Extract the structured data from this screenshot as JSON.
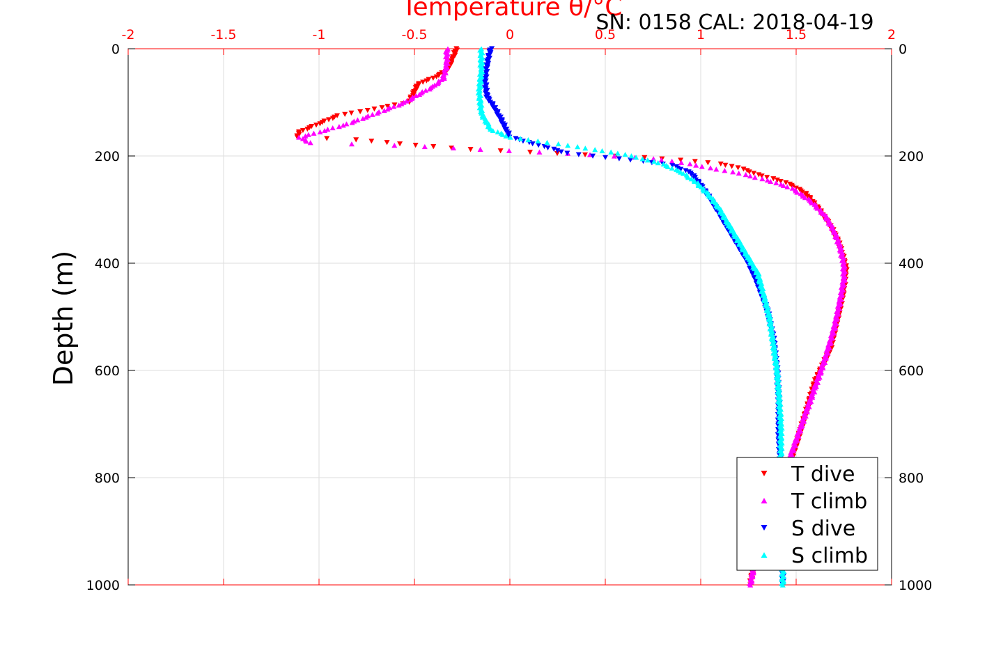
{
  "chart_data": {
    "type": "scatter",
    "title": "Temperature θ/°C",
    "subtitle": "SN: 0158  CAL: 2018-04-19",
    "xlabel": "Temperature θ/°C",
    "ylabel": "Depth (m)",
    "xlim": [
      -2,
      2
    ],
    "ylim": [
      0,
      1000
    ],
    "y_reversed": true,
    "x_ticks": [
      "-2",
      "-1.5",
      "-1",
      "-0.5",
      "0",
      "0.5",
      "1",
      "1.5",
      "2"
    ],
    "x_tick_values": [
      -2,
      -1.5,
      -1,
      -0.5,
      0,
      0.5,
      1,
      1.5,
      2
    ],
    "y_ticks": [
      "0",
      "200",
      "400",
      "600",
      "800",
      "1000"
    ],
    "y_tick_values": [
      0,
      200,
      400,
      600,
      800,
      1000
    ],
    "grid": true,
    "legend_position": "bottom-right",
    "series": [
      {
        "name": "T dive",
        "color": "#ff0000",
        "marker": "triangle-down",
        "points": [
          [
            -0.28,
            0
          ],
          [
            -0.3,
            20
          ],
          [
            -0.33,
            40
          ],
          [
            -0.4,
            55
          ],
          [
            -0.48,
            65
          ],
          [
            -0.5,
            80
          ],
          [
            -0.53,
            100
          ],
          [
            -0.6,
            105
          ],
          [
            -0.75,
            115
          ],
          [
            -0.9,
            125
          ],
          [
            -1.0,
            140
          ],
          [
            -1.1,
            155
          ],
          [
            -1.12,
            165
          ],
          [
            -0.8,
            170
          ],
          [
            -0.5,
            180
          ],
          [
            -0.2,
            188
          ],
          [
            0.1,
            193
          ],
          [
            0.4,
            198
          ],
          [
            0.7,
            203
          ],
          [
            0.9,
            208
          ],
          [
            1.1,
            215
          ],
          [
            1.2,
            222
          ],
          [
            1.3,
            235
          ],
          [
            1.45,
            250
          ],
          [
            1.55,
            270
          ],
          [
            1.62,
            300
          ],
          [
            1.68,
            330
          ],
          [
            1.72,
            360
          ],
          [
            1.74,
            380
          ],
          [
            1.76,
            410
          ],
          [
            1.75,
            450
          ],
          [
            1.72,
            500
          ],
          [
            1.68,
            560
          ],
          [
            1.6,
            620
          ],
          [
            1.55,
            680
          ],
          [
            1.5,
            740
          ],
          [
            1.45,
            790
          ],
          [
            1.38,
            850
          ],
          [
            1.32,
            910
          ],
          [
            1.28,
            960
          ],
          [
            1.26,
            1000
          ]
        ]
      },
      {
        "name": "T climb",
        "color": "#ff00ff",
        "marker": "triangle-up",
        "points": [
          [
            -0.33,
            0
          ],
          [
            -0.33,
            30
          ],
          [
            -0.35,
            55
          ],
          [
            -0.4,
            70
          ],
          [
            -0.48,
            85
          ],
          [
            -0.55,
            100
          ],
          [
            -0.7,
            120
          ],
          [
            -0.85,
            140
          ],
          [
            -1.0,
            155
          ],
          [
            -1.1,
            165
          ],
          [
            -1.05,
            175
          ],
          [
            -0.6,
            180
          ],
          [
            -0.3,
            185
          ],
          [
            0.0,
            190
          ],
          [
            0.3,
            195
          ],
          [
            0.55,
            200
          ],
          [
            0.75,
            205
          ],
          [
            0.9,
            212
          ],
          [
            1.05,
            222
          ],
          [
            1.2,
            232
          ],
          [
            1.35,
            245
          ],
          [
            1.48,
            260
          ],
          [
            1.58,
            285
          ],
          [
            1.65,
            310
          ],
          [
            1.7,
            340
          ],
          [
            1.73,
            370
          ],
          [
            1.75,
            400
          ],
          [
            1.75,
            430
          ],
          [
            1.73,
            470
          ],
          [
            1.7,
            520
          ],
          [
            1.65,
            580
          ],
          [
            1.6,
            630
          ],
          [
            1.55,
            680
          ],
          [
            1.5,
            730
          ],
          [
            1.45,
            780
          ],
          [
            1.38,
            840
          ],
          [
            1.33,
            890
          ],
          [
            1.3,
            940
          ],
          [
            1.27,
            980
          ],
          [
            1.26,
            1000
          ]
        ]
      },
      {
        "name": "S dive",
        "color": "#0000ff",
        "marker": "triangle-down",
        "points": [
          [
            -0.1,
            0
          ],
          [
            -0.12,
            30
          ],
          [
            -0.13,
            60
          ],
          [
            -0.12,
            90
          ],
          [
            -0.08,
            110
          ],
          [
            -0.05,
            130
          ],
          [
            -0.02,
            150
          ],
          [
            0.0,
            165
          ],
          [
            0.1,
            175
          ],
          [
            0.2,
            185
          ],
          [
            0.3,
            195
          ],
          [
            0.5,
            203
          ],
          [
            0.7,
            210
          ],
          [
            0.85,
            218
          ],
          [
            0.95,
            232
          ],
          [
            1.0,
            255
          ],
          [
            1.05,
            280
          ],
          [
            1.1,
            310
          ],
          [
            1.15,
            340
          ],
          [
            1.2,
            370
          ],
          [
            1.25,
            400
          ],
          [
            1.3,
            440
          ],
          [
            1.35,
            490
          ],
          [
            1.38,
            540
          ],
          [
            1.4,
            600
          ],
          [
            1.41,
            660
          ],
          [
            1.41,
            720
          ],
          [
            1.42,
            780
          ],
          [
            1.42,
            840
          ],
          [
            1.42,
            900
          ],
          [
            1.43,
            960
          ],
          [
            1.43,
            1000
          ]
        ]
      },
      {
        "name": "S climb",
        "color": "#00ffff",
        "marker": "triangle-up",
        "points": [
          [
            -0.15,
            0
          ],
          [
            -0.15,
            40
          ],
          [
            -0.16,
            80
          ],
          [
            -0.15,
            120
          ],
          [
            -0.1,
            150
          ],
          [
            0.0,
            165
          ],
          [
            0.15,
            172
          ],
          [
            0.3,
            180
          ],
          [
            0.45,
            188
          ],
          [
            0.6,
            197
          ],
          [
            0.7,
            205
          ],
          [
            0.8,
            215
          ],
          [
            0.9,
            230
          ],
          [
            0.98,
            250
          ],
          [
            1.05,
            275
          ],
          [
            1.1,
            300
          ],
          [
            1.15,
            330
          ],
          [
            1.2,
            360
          ],
          [
            1.25,
            390
          ],
          [
            1.3,
            420
          ],
          [
            1.33,
            460
          ],
          [
            1.36,
            500
          ],
          [
            1.38,
            550
          ],
          [
            1.4,
            600
          ],
          [
            1.41,
            650
          ],
          [
            1.42,
            700
          ],
          [
            1.42,
            760
          ],
          [
            1.42,
            820
          ],
          [
            1.43,
            880
          ],
          [
            1.43,
            940
          ],
          [
            1.43,
            1000
          ]
        ]
      }
    ]
  }
}
